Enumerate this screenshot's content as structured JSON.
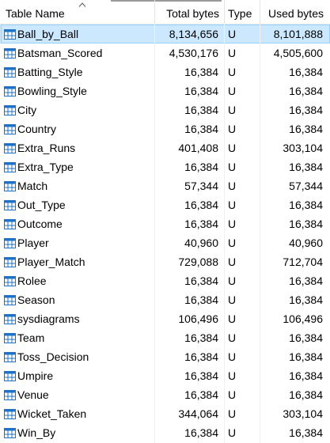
{
  "header": {
    "name": "Table Name",
    "total": "Total bytes",
    "type": "Type",
    "used": "Used bytes"
  },
  "rows": [
    {
      "name": "Ball_by_Ball",
      "total": "8,134,656",
      "type": "U",
      "used": "8,101,888",
      "selected": true
    },
    {
      "name": "Batsman_Scored",
      "total": "4,530,176",
      "type": "U",
      "used": "4,505,600"
    },
    {
      "name": "Batting_Style",
      "total": "16,384",
      "type": "U",
      "used": "16,384"
    },
    {
      "name": "Bowling_Style",
      "total": "16,384",
      "type": "U",
      "used": "16,384"
    },
    {
      "name": "City",
      "total": "16,384",
      "type": "U",
      "used": "16,384"
    },
    {
      "name": "Country",
      "total": "16,384",
      "type": "U",
      "used": "16,384"
    },
    {
      "name": "Extra_Runs",
      "total": "401,408",
      "type": "U",
      "used": "303,104"
    },
    {
      "name": "Extra_Type",
      "total": "16,384",
      "type": "U",
      "used": "16,384"
    },
    {
      "name": "Match",
      "total": "57,344",
      "type": "U",
      "used": "57,344"
    },
    {
      "name": "Out_Type",
      "total": "16,384",
      "type": "U",
      "used": "16,384"
    },
    {
      "name": "Outcome",
      "total": "16,384",
      "type": "U",
      "used": "16,384"
    },
    {
      "name": "Player",
      "total": "40,960",
      "type": "U",
      "used": "40,960"
    },
    {
      "name": "Player_Match",
      "total": "729,088",
      "type": "U",
      "used": "712,704"
    },
    {
      "name": "Rolee",
      "total": "16,384",
      "type": "U",
      "used": "16,384"
    },
    {
      "name": "Season",
      "total": "16,384",
      "type": "U",
      "used": "16,384"
    },
    {
      "name": "sysdiagrams",
      "total": "106,496",
      "type": "U",
      "used": "106,496"
    },
    {
      "name": "Team",
      "total": "16,384",
      "type": "U",
      "used": "16,384"
    },
    {
      "name": "Toss_Decision",
      "total": "16,384",
      "type": "U",
      "used": "16,384"
    },
    {
      "name": "Umpire",
      "total": "16,384",
      "type": "U",
      "used": "16,384"
    },
    {
      "name": "Venue",
      "total": "16,384",
      "type": "U",
      "used": "16,384"
    },
    {
      "name": "Wicket_Taken",
      "total": "344,064",
      "type": "U",
      "used": "303,104"
    },
    {
      "name": "Win_By",
      "total": "16,384",
      "type": "U",
      "used": "16,384"
    }
  ],
  "icon": "table-icon",
  "sort_icon": "sort-ascending-icon",
  "colors": {
    "selection_bg": "#cce8ff",
    "selection_border": "#99d1ff",
    "icon_blue": "#1e73c9"
  }
}
